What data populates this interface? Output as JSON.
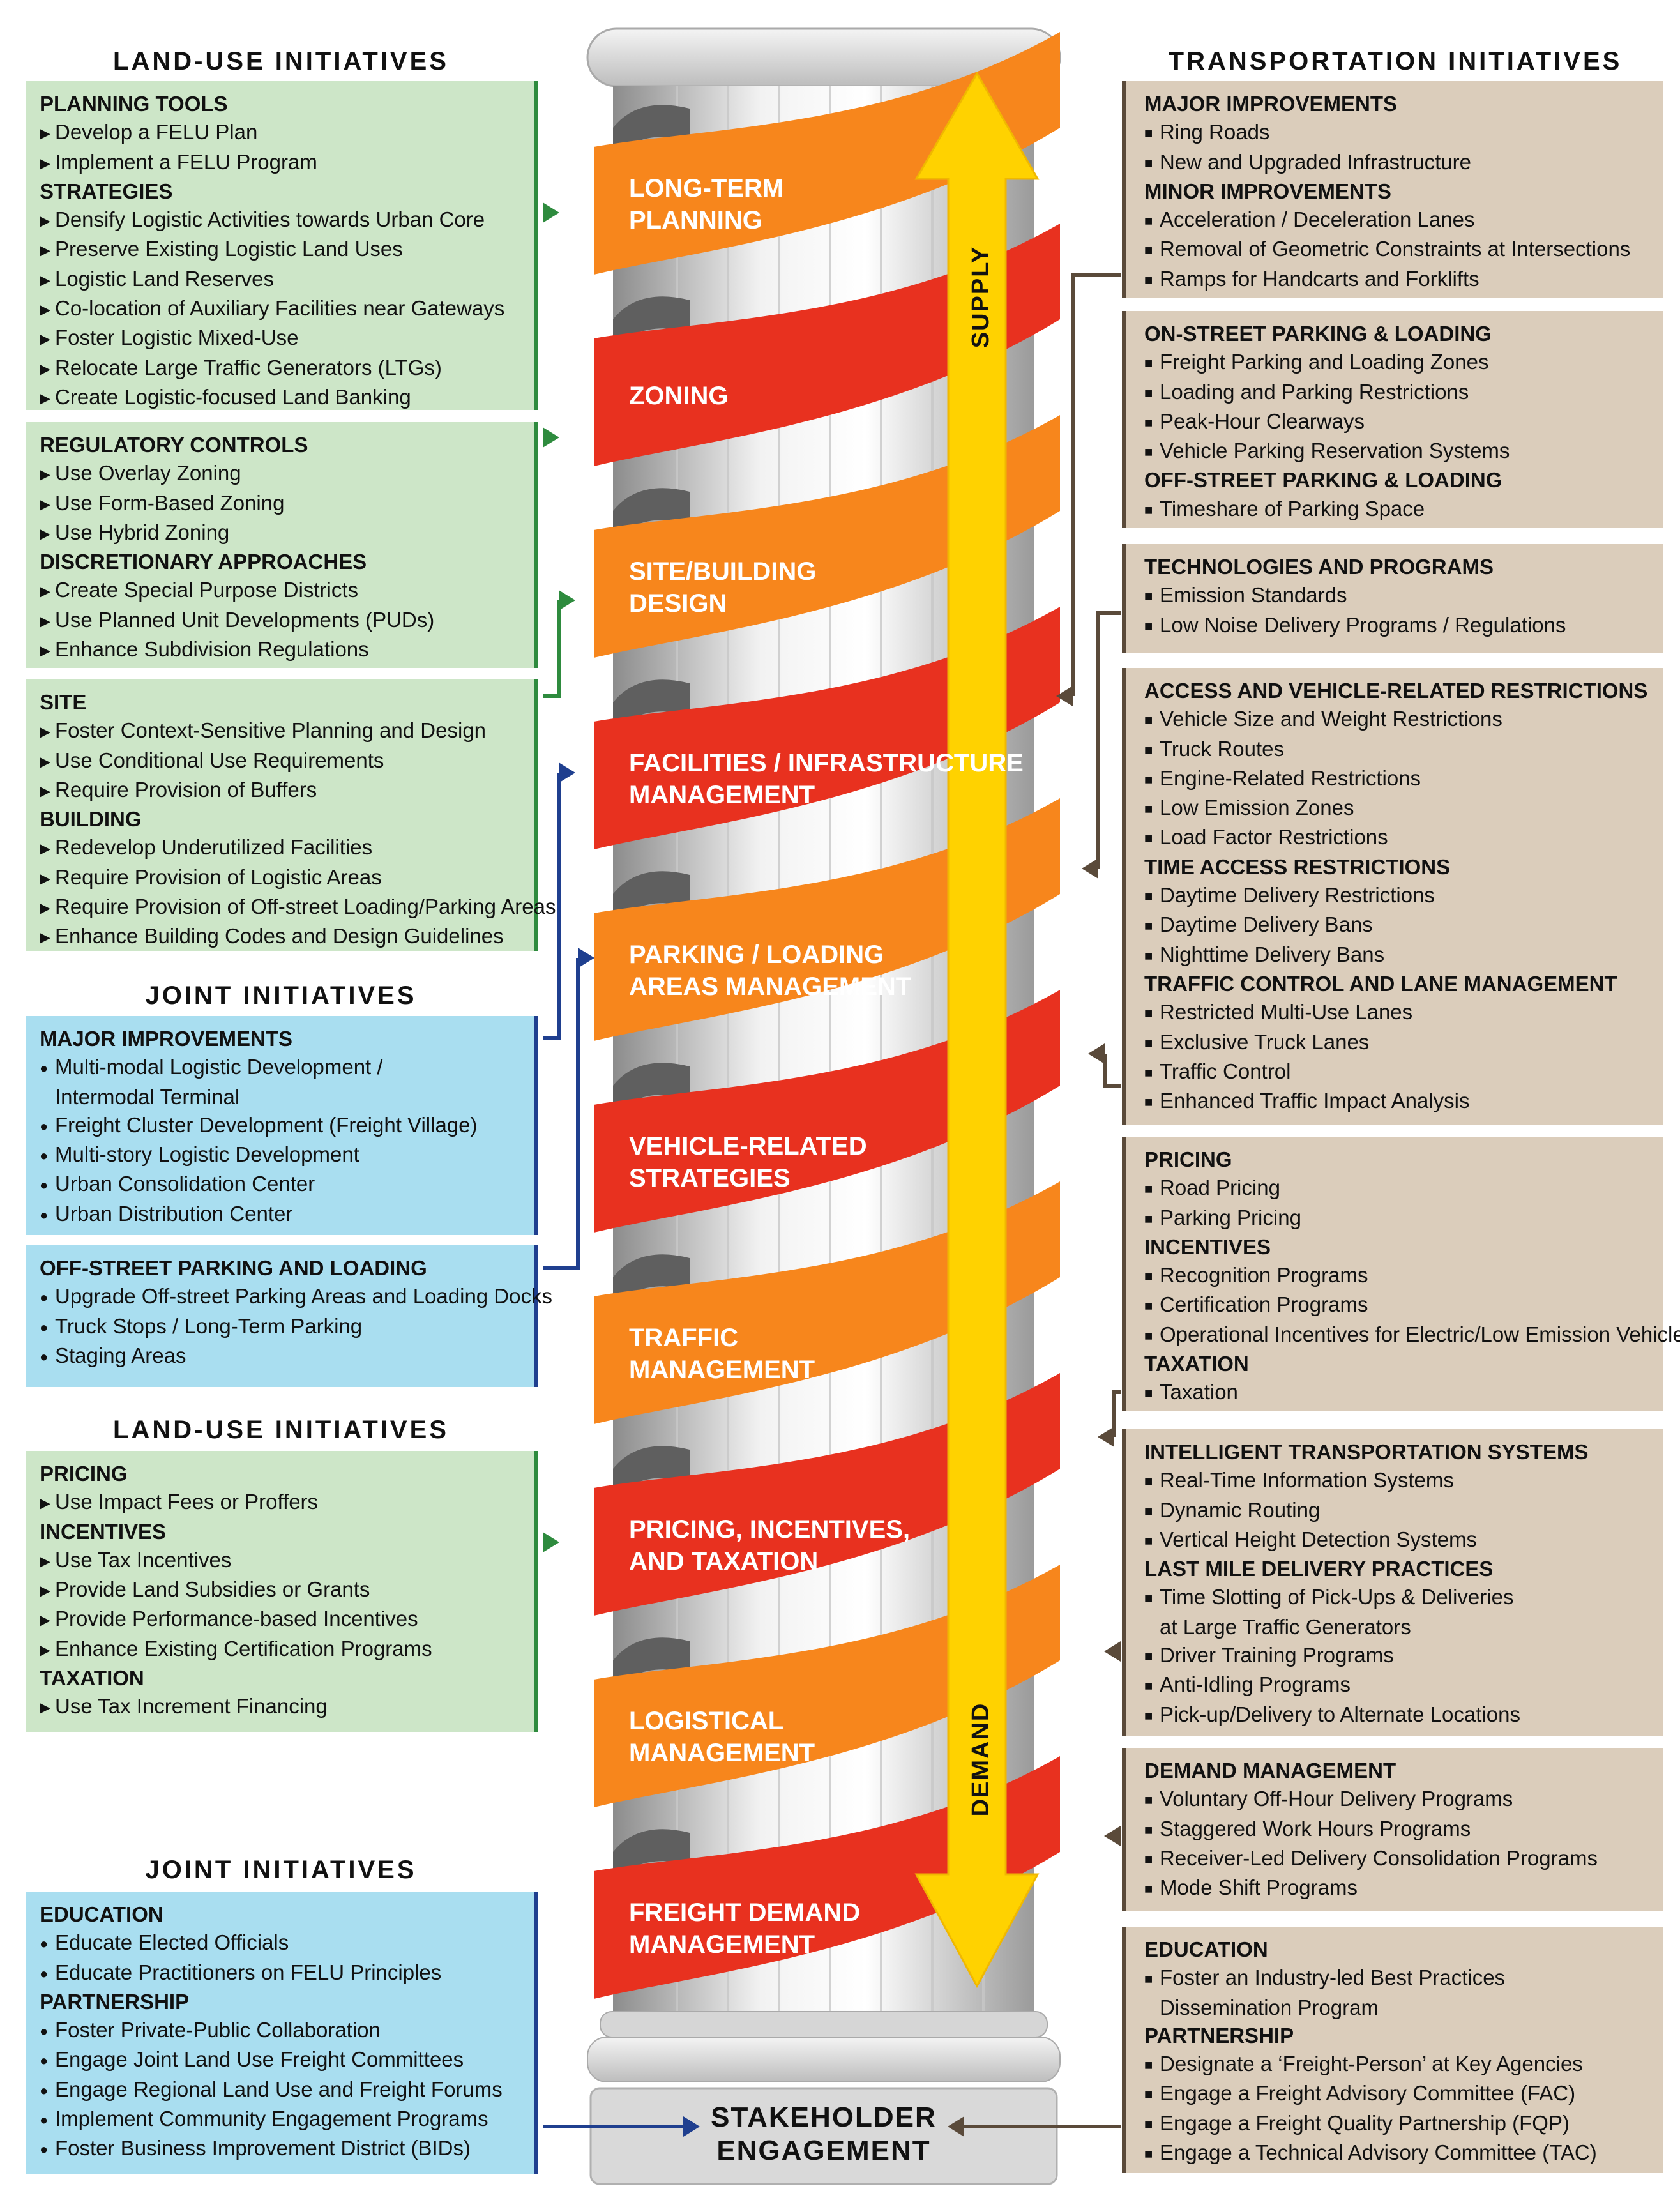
{
  "headers": {
    "land_use_1": "LAND-USE INITIATIVES",
    "joint_1": "JOINT INITIATIVES",
    "land_use_2": "LAND-USE INITIATIVES",
    "joint_2": "JOINT INITIATIVES",
    "transportation": "TRANSPORTATION INITIATIVES"
  },
  "left_boxes": [
    {
      "lines": [
        {
          "t": "PLANNING TOOLS",
          "h": true
        },
        {
          "t": "Develop a FELU Plan"
        },
        {
          "t": "Implement a FELU Program"
        },
        {
          "t": "STRATEGIES",
          "h": true
        },
        {
          "t": "Densify Logistic Activities towards Urban Core"
        },
        {
          "t": "Preserve Existing Logistic Land Uses"
        },
        {
          "t": "Logistic Land Reserves"
        },
        {
          "t": "Co-location of Auxiliary Facilities near Gateways"
        },
        {
          "t": "Foster Logistic Mixed-Use"
        },
        {
          "t": "Relocate Large Traffic Generators (LTGs)"
        },
        {
          "t": "Create Logistic-focused Land Banking"
        }
      ]
    },
    {
      "lines": [
        {
          "t": "REGULATORY CONTROLS",
          "h": true
        },
        {
          "t": "Use Overlay Zoning"
        },
        {
          "t": "Use Form-Based Zoning"
        },
        {
          "t": "Use Hybrid Zoning"
        },
        {
          "t": "DISCRETIONARY APPROACHES",
          "h": true
        },
        {
          "t": "Create Special Purpose Districts"
        },
        {
          "t": "Use Planned Unit Developments (PUDs)"
        },
        {
          "t": "Enhance Subdivision Regulations"
        }
      ]
    },
    {
      "lines": [
        {
          "t": "SITE",
          "h": true
        },
        {
          "t": "Foster Context-Sensitive Planning and Design"
        },
        {
          "t": "Use Conditional Use Requirements"
        },
        {
          "t": "Require Provision of Buffers"
        },
        {
          "t": "BUILDING",
          "h": true
        },
        {
          "t": "Redevelop Underutilized Facilities"
        },
        {
          "t": "Require Provision of Logistic Areas"
        },
        {
          "t": "Require Provision of Off-street Loading/Parking Areas"
        },
        {
          "t": "Enhance Building Codes and Design Guidelines"
        }
      ]
    },
    {
      "lines": [
        {
          "t": "MAJOR IMPROVEMENTS",
          "h": true
        },
        {
          "t": "Multi-modal Logistic Development /"
        },
        {
          "t": "Intermodal Terminal",
          "cont": true
        },
        {
          "t": "Freight Cluster Development (Freight Village)"
        },
        {
          "t": "Multi-story Logistic Development"
        },
        {
          "t": "Urban Consolidation Center"
        },
        {
          "t": "Urban Distribution Center"
        }
      ]
    },
    {
      "lines": [
        {
          "t": "OFF-STREET PARKING AND LOADING",
          "h": true
        },
        {
          "t": "Upgrade Off-street Parking Areas and Loading Docks"
        },
        {
          "t": "Truck Stops / Long-Term Parking"
        },
        {
          "t": "Staging Areas"
        }
      ]
    },
    {
      "lines": [
        {
          "t": "PRICING",
          "h": true
        },
        {
          "t": "Use Impact Fees or Proffers"
        },
        {
          "t": "INCENTIVES",
          "h": true
        },
        {
          "t": "Use Tax Incentives"
        },
        {
          "t": "Provide Land Subsidies or Grants"
        },
        {
          "t": "Provide Performance-based Incentives"
        },
        {
          "t": "Enhance Existing Certification Programs"
        },
        {
          "t": "TAXATION",
          "h": true
        },
        {
          "t": "Use Tax Increment Financing"
        }
      ]
    },
    {
      "lines": [
        {
          "t": "EDUCATION",
          "h": true
        },
        {
          "t": "Educate Elected Officials"
        },
        {
          "t": "Educate Practitioners on FELU Principles"
        },
        {
          "t": "PARTNERSHIP",
          "h": true
        },
        {
          "t": "Foster Private-Public Collaboration"
        },
        {
          "t": "Engage Joint Land Use Freight Committees"
        },
        {
          "t": "Engage Regional Land Use and Freight Forums"
        },
        {
          "t": "Implement Community Engagement Programs"
        },
        {
          "t": "Foster Business Improvement District (BIDs)"
        }
      ]
    }
  ],
  "right_boxes": [
    {
      "lines": [
        {
          "t": "MAJOR IMPROVEMENTS",
          "h": true
        },
        {
          "t": "Ring Roads"
        },
        {
          "t": "New and Upgraded Infrastructure"
        },
        {
          "t": "MINOR IMPROVEMENTS",
          "h": true
        },
        {
          "t": "Acceleration / Deceleration Lanes"
        },
        {
          "t": "Removal of Geometric Constraints at Intersections"
        },
        {
          "t": "Ramps for Handcarts and Forklifts"
        }
      ]
    },
    {
      "lines": [
        {
          "t": "ON-STREET PARKING & LOADING",
          "h": true
        },
        {
          "t": "Freight Parking and Loading Zones"
        },
        {
          "t": "Loading and Parking Restrictions"
        },
        {
          "t": "Peak-Hour Clearways"
        },
        {
          "t": "Vehicle Parking Reservation Systems"
        },
        {
          "t": "OFF-STREET PARKING & LOADING",
          "h": true
        },
        {
          "t": "Timeshare of Parking Space"
        }
      ]
    },
    {
      "lines": [
        {
          "t": "TECHNOLOGIES AND PROGRAMS",
          "h": true
        },
        {
          "t": "Emission Standards"
        },
        {
          "t": "Low Noise Delivery Programs / Regulations"
        }
      ]
    },
    {
      "lines": [
        {
          "t": "ACCESS AND VEHICLE-RELATED RESTRICTIONS",
          "h": true
        },
        {
          "t": "Vehicle Size and Weight Restrictions"
        },
        {
          "t": "Truck Routes"
        },
        {
          "t": "Engine-Related Restrictions"
        },
        {
          "t": "Low Emission Zones"
        },
        {
          "t": "Load Factor Restrictions"
        },
        {
          "t": "TIME ACCESS RESTRICTIONS",
          "h": true
        },
        {
          "t": "Daytime Delivery Restrictions"
        },
        {
          "t": "Daytime Delivery Bans"
        },
        {
          "t": "Nighttime Delivery Bans"
        },
        {
          "t": "TRAFFIC CONTROL AND LANE MANAGEMENT",
          "h": true
        },
        {
          "t": "Restricted Multi-Use Lanes"
        },
        {
          "t": "Exclusive Truck Lanes"
        },
        {
          "t": "Traffic Control"
        },
        {
          "t": "Enhanced Traffic Impact Analysis"
        }
      ]
    },
    {
      "lines": [
        {
          "t": "PRICING",
          "h": true
        },
        {
          "t": "Road Pricing"
        },
        {
          "t": "Parking Pricing"
        },
        {
          "t": "INCENTIVES",
          "h": true
        },
        {
          "t": "Recognition Programs"
        },
        {
          "t": "Certification Programs"
        },
        {
          "t": "Operational Incentives for Electric/Low Emission Vehicles"
        },
        {
          "t": "TAXATION",
          "h": true
        },
        {
          "t": "Taxation"
        }
      ]
    },
    {
      "lines": [
        {
          "t": "INTELLIGENT TRANSPORTATION SYSTEMS",
          "h": true
        },
        {
          "t": "Real-Time Information Systems"
        },
        {
          "t": "Dynamic Routing"
        },
        {
          "t": "Vertical Height Detection Systems"
        },
        {
          "t": "LAST MILE DELIVERY PRACTICES",
          "h": true
        },
        {
          "t": "Time Slotting of Pick-Ups & Deliveries"
        },
        {
          "t": "at Large Traffic Generators",
          "cont": true
        },
        {
          "t": "Driver Training Programs"
        },
        {
          "t": "Anti-Idling Programs"
        },
        {
          "t": "Pick-up/Delivery to Alternate Locations"
        }
      ]
    },
    {
      "lines": [
        {
          "t": "DEMAND MANAGEMENT",
          "h": true
        },
        {
          "t": "Voluntary Off-Hour Delivery Programs"
        },
        {
          "t": "Staggered Work Hours Programs"
        },
        {
          "t": "Receiver-Led Delivery Consolidation Programs"
        },
        {
          "t": "Mode Shift Programs"
        }
      ]
    },
    {
      "lines": [
        {
          "t": "EDUCATION",
          "h": true
        },
        {
          "t": "Foster an Industry-led Best Practices"
        },
        {
          "t": "Dissemination Program",
          "cont": true
        },
        {
          "t": "PARTNERSHIP",
          "h": true
        },
        {
          "t": "Designate a ‘Freight-Person’ at Key Agencies"
        },
        {
          "t": "Engage a Freight Advisory Committee (FAC)"
        },
        {
          "t": "Engage a Freight Quality Partnership (FQP)"
        },
        {
          "t": "Engage a Technical Advisory Committee (TAC)"
        }
      ]
    }
  ],
  "bands": [
    {
      "l1": "LONG-TERM",
      "l2": "PLANNING",
      "color": "#f7861c"
    },
    {
      "l1": "ZONING",
      "l2": "",
      "color": "#e8311f"
    },
    {
      "l1": "SITE/BUILDING",
      "l2": "DESIGN",
      "color": "#f7861c"
    },
    {
      "l1": "FACILITIES / INFRASTRUCTURE",
      "l2": "MANAGEMENT",
      "color": "#e8311f"
    },
    {
      "l1": "PARKING / LOADING",
      "l2": "AREAS MANAGEMENT",
      "color": "#f7861c"
    },
    {
      "l1": "VEHICLE-RELATED",
      "l2": "STRATEGIES",
      "color": "#e8311f"
    },
    {
      "l1": "TRAFFIC",
      "l2": "MANAGEMENT",
      "color": "#f7861c"
    },
    {
      "l1": "PRICING, INCENTIVES,",
      "l2": "AND TAXATION",
      "color": "#e8311f"
    },
    {
      "l1": "LOGISTICAL",
      "l2": "MANAGEMENT",
      "color": "#f7861c"
    },
    {
      "l1": "FREIGHT DEMAND",
      "l2": "MANAGEMENT",
      "color": "#e8311f"
    }
  ],
  "arrow": {
    "supply": "SUPPLY",
    "demand": "DEMAND"
  },
  "base": {
    "l1": "STAKEHOLDER",
    "l2": "ENGAGEMENT"
  },
  "colors": {
    "green": "#2e8b3e",
    "blue": "#1f3f8f",
    "brown": "#5a4a3a",
    "orange": "#f7861c",
    "red": "#e8311f",
    "yellow": "#ffd200"
  }
}
